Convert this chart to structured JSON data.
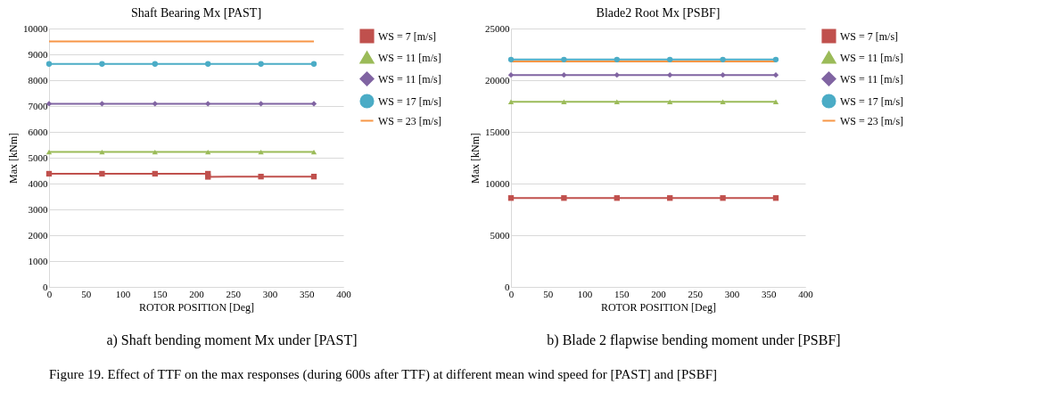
{
  "chart_data": [
    {
      "type": "line",
      "title": "Shaft Bearing Mx [PAST]",
      "xlabel": "ROTOR POSITION [Deg]",
      "ylabel": "Max [kNm]",
      "xlim": [
        0,
        400
      ],
      "xticks": [
        0,
        50,
        100,
        150,
        200,
        250,
        300,
        350,
        400
      ],
      "ylim": [
        0,
        10000
      ],
      "yticks": [
        0,
        1000,
        2000,
        3000,
        4000,
        5000,
        6000,
        7000,
        8000,
        9000,
        10000
      ],
      "grid": "y",
      "legend": "right",
      "series": [
        {
          "name": "WS = 7 [m/s]",
          "color": "#c0504d",
          "marker": "square",
          "x": [
            0,
            72,
            144,
            216,
            216,
            288,
            360
          ],
          "values": [
            4380,
            4380,
            4380,
            4380,
            4260,
            4270,
            4270
          ]
        },
        {
          "name": "WS = 11 [m/s]",
          "color": "#9bbb59",
          "marker": "triangle",
          "x": [
            0,
            72,
            144,
            216,
            288,
            360
          ],
          "values": [
            5220,
            5220,
            5220,
            5220,
            5220,
            5220
          ]
        },
        {
          "name": "WS = 11 [m/s]",
          "color": "#8064a2",
          "marker": "diamond",
          "x": [
            0,
            72,
            144,
            216,
            288,
            360
          ],
          "values": [
            7090,
            7090,
            7090,
            7090,
            7090,
            7090
          ]
        },
        {
          "name": "WS = 17 [m/s]",
          "color": "#4bacc6",
          "marker": "circle",
          "x": [
            0,
            72,
            144,
            216,
            288,
            360
          ],
          "values": [
            8630,
            8630,
            8630,
            8630,
            8630,
            8630
          ]
        },
        {
          "name": "WS = 23 [m/s]",
          "color": "#f79646",
          "marker": "none",
          "x": [
            0,
            72,
            144,
            216,
            288,
            360
          ],
          "values": [
            9500,
            9500,
            9500,
            9500,
            9500,
            9500
          ]
        }
      ],
      "annotations": [
        "a) Shaft bending moment Mx under [PAST]"
      ]
    },
    {
      "type": "line",
      "title": "Blade2 Root Mx [PSBF]",
      "xlabel": "ROTOR POSITION [Deg]",
      "ylabel": "Max [kNm]",
      "xlim": [
        0,
        400
      ],
      "xticks": [
        0,
        50,
        100,
        150,
        200,
        250,
        300,
        350,
        400
      ],
      "ylim": [
        0,
        25000
      ],
      "yticks": [
        0,
        5000,
        10000,
        15000,
        20000,
        25000
      ],
      "grid": "y",
      "legend": "right",
      "series": [
        {
          "name": "WS = 7 [m/s]",
          "color": "#c0504d",
          "marker": "square",
          "x": [
            0,
            72,
            144,
            216,
            288,
            360
          ],
          "values": [
            8600,
            8600,
            8600,
            8600,
            8600,
            8600
          ]
        },
        {
          "name": "WS = 11 [m/s]",
          "color": "#9bbb59",
          "marker": "triangle",
          "x": [
            0,
            72,
            144,
            216,
            288,
            360
          ],
          "values": [
            17900,
            17900,
            17900,
            17900,
            17900,
            17900
          ]
        },
        {
          "name": "WS = 11 [m/s]",
          "color": "#8064a2",
          "marker": "diamond",
          "x": [
            0,
            72,
            144,
            216,
            288,
            360
          ],
          "values": [
            20500,
            20500,
            20500,
            20500,
            20500,
            20500
          ]
        },
        {
          "name": "WS = 17 [m/s]",
          "color": "#4bacc6",
          "marker": "circle",
          "x": [
            0,
            72,
            144,
            216,
            288,
            360
          ],
          "values": [
            22000,
            22000,
            22000,
            22000,
            22000,
            22000
          ]
        },
        {
          "name": "WS = 23 [m/s]",
          "color": "#f79646",
          "marker": "none",
          "x": [
            0,
            72,
            144,
            216,
            288,
            360
          ],
          "values": [
            21800,
            21800,
            21800,
            21800,
            21800,
            21800
          ]
        }
      ],
      "annotations": [
        "b) Blade 2 flapwise bending moment under [PSBF]"
      ]
    },
    {
      "type": "other",
      "annotations": [
        "Figure 19. Effect of TTF on the max responses (during 600s after TTF) at different mean wind speed for [PAST] and [PSBF]"
      ]
    }
  ]
}
